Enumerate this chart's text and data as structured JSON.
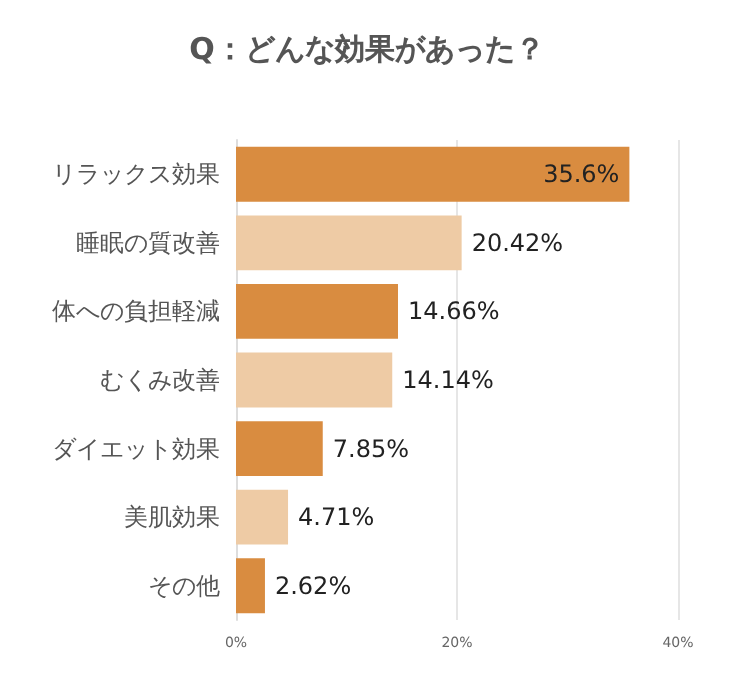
{
  "chart_data": {
    "type": "bar",
    "orientation": "horizontal",
    "title": "Q：どんな効果があった？",
    "categories": [
      "リラックス効果",
      "睡眠の質改善",
      "体への負担軽減",
      "むくみ改善",
      "ダイエット効果",
      "美肌効果",
      "その他"
    ],
    "values": [
      35.6,
      20.42,
      14.66,
      14.14,
      7.85,
      4.71,
      2.62
    ],
    "value_labels": [
      "35.6%",
      "20.42%",
      "14.66%",
      "14.14%",
      "7.85%",
      "4.71%",
      "2.62%"
    ],
    "colors": [
      "#d98c40",
      "#eecba5",
      "#d98c40",
      "#eecba5",
      "#d98c40",
      "#eecba5",
      "#d98c40"
    ],
    "xlim": [
      0,
      40
    ],
    "xticks": [
      {
        "value": 0,
        "label": "0%"
      },
      {
        "value": 20,
        "label": "20%"
      },
      {
        "value": 40,
        "label": "40%"
      }
    ],
    "grid": "x"
  }
}
